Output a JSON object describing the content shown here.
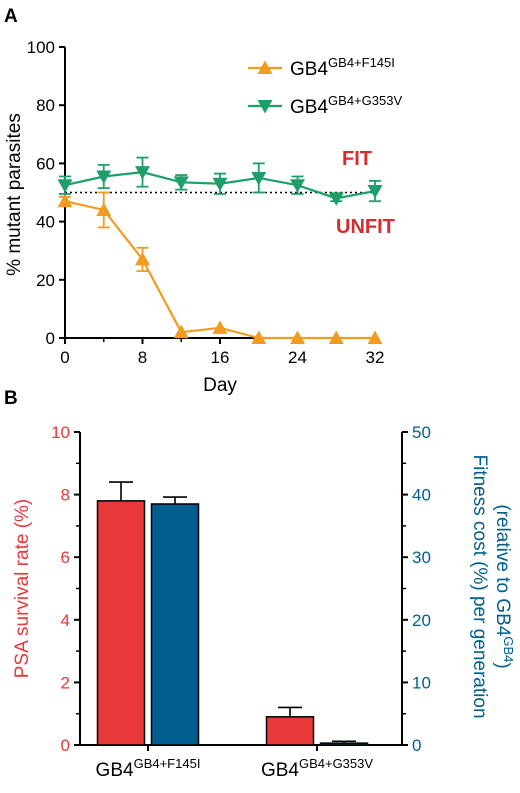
{
  "colors": {
    "orange": "#F39B1E",
    "green": "#1E9E6A",
    "red": "#E8383A",
    "blue": "#005F8E",
    "label_red": "#D52C2F",
    "axis": "#000000"
  },
  "chart_data": [
    {
      "panel": "A",
      "type": "line",
      "xlabel": "Day",
      "ylabel": "% mutant parasites",
      "xlim": [
        0,
        32
      ],
      "ylim": [
        0,
        100
      ],
      "xticks": [
        "0",
        "8",
        "16",
        "24",
        "32"
      ],
      "xtick_values": [
        0,
        8,
        16,
        24,
        32
      ],
      "yticks": [
        "0",
        "20",
        "40",
        "60",
        "80",
        "100"
      ],
      "ytick_values": [
        0,
        20,
        40,
        60,
        80,
        100
      ],
      "reference_line": 50,
      "annotations": {
        "fit": "FIT",
        "unfit": "UNFIT"
      },
      "legend_position": "top-right",
      "series": [
        {
          "legend_base": "GB4",
          "legend_sup": "GB4+F145I",
          "marker": "triangle-up",
          "x": [
            0,
            4,
            8,
            12,
            16,
            20,
            24,
            28,
            32
          ],
          "y": [
            47,
            44,
            27,
            2,
            3.5,
            0,
            0,
            0,
            0
          ],
          "err": [
            1.5,
            6,
            4,
            0,
            0,
            0,
            0,
            0,
            0
          ]
        },
        {
          "legend_base": "GB4",
          "legend_sup": "GB4+G353V",
          "marker": "triangle-down",
          "x": [
            0,
            4,
            8,
            12,
            16,
            20,
            24,
            28,
            32
          ],
          "y": [
            52.5,
            55.5,
            57,
            53.5,
            53,
            55,
            52.5,
            48,
            50.5
          ],
          "err": [
            3,
            4,
            5,
            2.5,
            3.5,
            5,
            3,
            1,
            3.5
          ]
        }
      ]
    },
    {
      "panel": "B",
      "type": "bar",
      "categories": [
        {
          "base": "GB4",
          "sup": "GB4+F145I"
        },
        {
          "base": "GB4",
          "sup": "GB4+G353V"
        }
      ],
      "ylabel_left": "PSA survival rate (%)",
      "ylim_left": [
        0,
        10
      ],
      "yticks_left": [
        "0",
        "2",
        "4",
        "6",
        "8",
        "10"
      ],
      "ytick_values_left": [
        0,
        2,
        4,
        6,
        8,
        10
      ],
      "ylabel_right_line1": "Fitness cost (%) per generation",
      "ylabel_right_line2_pre": "(relative to GB4",
      "ylabel_right_line2_sup": "GB4",
      "ylabel_right_line2_post": ")",
      "ylim_right": [
        0,
        50
      ],
      "yticks_right": [
        "0",
        "10",
        "20",
        "30",
        "40",
        "50"
      ],
      "ytick_values_right": [
        0,
        10,
        20,
        30,
        40,
        50
      ],
      "series": [
        {
          "axis": "left",
          "values": [
            7.8,
            0.9
          ],
          "err": [
            0.6,
            0.3
          ]
        },
        {
          "axis": "right",
          "values": [
            38.5,
            0.3
          ],
          "err": [
            1.1,
            0.3
          ]
        }
      ]
    }
  ]
}
